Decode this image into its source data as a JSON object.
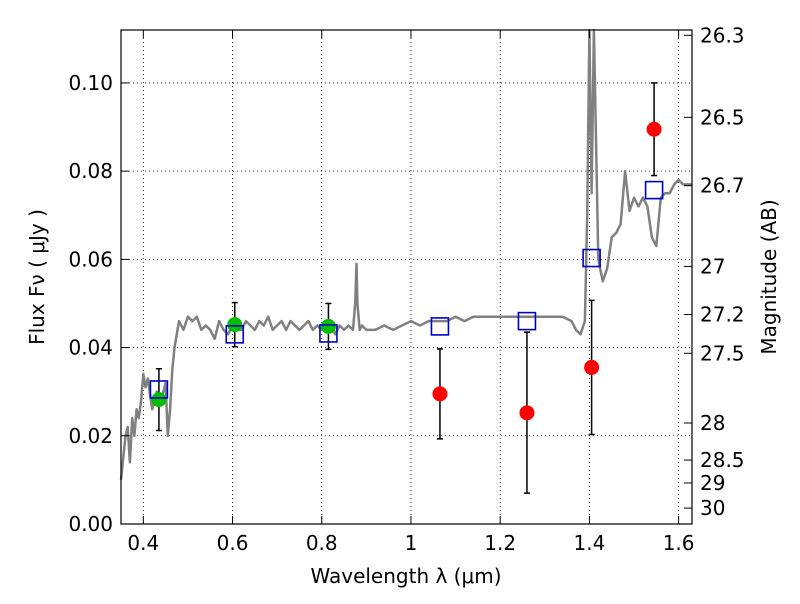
{
  "chart_data": {
    "type": "scatter",
    "xlabel": "Wavelength  λ (μm)",
    "ylabel": "Flux  Fν  ( μJy )",
    "y2label": "Magnitude (AB)",
    "xlim": [
      0.35,
      1.63
    ],
    "ylim": [
      0.0,
      0.112
    ],
    "grid": true,
    "xticks": [
      {
        "v": 0.4,
        "label": "0.4"
      },
      {
        "v": 0.6,
        "label": "0.6"
      },
      {
        "v": 0.8,
        "label": "0.8"
      },
      {
        "v": 1.0,
        "label": "1"
      },
      {
        "v": 1.2,
        "label": "1.2"
      },
      {
        "v": 1.4,
        "label": "1.4"
      },
      {
        "v": 1.6,
        "label": "1.6"
      }
    ],
    "yticks": [
      {
        "v": 0.0,
        "label": "0.00"
      },
      {
        "v": 0.02,
        "label": "0.02"
      },
      {
        "v": 0.04,
        "label": "0.04"
      },
      {
        "v": 0.06,
        "label": "0.06"
      },
      {
        "v": 0.08,
        "label": "0.08"
      },
      {
        "v": 0.1,
        "label": "0.10"
      }
    ],
    "mag_ticks": [
      {
        "v": 0.1108,
        "label": "26.3"
      },
      {
        "v": 0.0922,
        "label": "26.5"
      },
      {
        "v": 0.0767,
        "label": "26.7"
      },
      {
        "v": 0.0584,
        "label": "27"
      },
      {
        "v": 0.0475,
        "label": "27.2"
      },
      {
        "v": 0.0387,
        "label": "27.5"
      },
      {
        "v": 0.0229,
        "label": "28"
      },
      {
        "v": 0.0145,
        "label": "28.5"
      },
      {
        "v": 0.0093,
        "label": "29"
      },
      {
        "v": 0.0036,
        "label": "30"
      }
    ],
    "model_spectrum": {
      "color": "#808080",
      "x": [
        0.35,
        0.36,
        0.365,
        0.37,
        0.375,
        0.38,
        0.385,
        0.39,
        0.395,
        0.4,
        0.405,
        0.41,
        0.42,
        0.43,
        0.44,
        0.45,
        0.455,
        0.46,
        0.465,
        0.47,
        0.48,
        0.49,
        0.5,
        0.51,
        0.52,
        0.53,
        0.54,
        0.55,
        0.56,
        0.57,
        0.58,
        0.59,
        0.6,
        0.61,
        0.62,
        0.63,
        0.64,
        0.65,
        0.66,
        0.67,
        0.68,
        0.69,
        0.7,
        0.71,
        0.72,
        0.73,
        0.74,
        0.75,
        0.76,
        0.77,
        0.78,
        0.79,
        0.8,
        0.81,
        0.82,
        0.83,
        0.84,
        0.85,
        0.86,
        0.87,
        0.875,
        0.878,
        0.88,
        0.885,
        0.89,
        0.9,
        0.92,
        0.94,
        0.96,
        0.98,
        1.0,
        1.02,
        1.04,
        1.06,
        1.08,
        1.1,
        1.12,
        1.14,
        1.16,
        1.18,
        1.2,
        1.22,
        1.24,
        1.26,
        1.28,
        1.3,
        1.32,
        1.34,
        1.36,
        1.37,
        1.38,
        1.39,
        1.395,
        1.4,
        1.405,
        1.41,
        1.42,
        1.43,
        1.44,
        1.45,
        1.46,
        1.47,
        1.48,
        1.49,
        1.5,
        1.51,
        1.52,
        1.53,
        1.54,
        1.55,
        1.56,
        1.57,
        1.58,
        1.59,
        1.6,
        1.61,
        1.63
      ],
      "y": [
        0.01,
        0.02,
        0.022,
        0.014,
        0.024,
        0.02,
        0.026,
        0.024,
        0.028,
        0.034,
        0.031,
        0.033,
        0.026,
        0.03,
        0.028,
        0.032,
        0.02,
        0.026,
        0.035,
        0.04,
        0.046,
        0.044,
        0.047,
        0.046,
        0.047,
        0.044,
        0.045,
        0.044,
        0.042,
        0.046,
        0.044,
        0.043,
        0.045,
        0.044,
        0.044,
        0.046,
        0.045,
        0.044,
        0.046,
        0.045,
        0.047,
        0.044,
        0.045,
        0.046,
        0.044,
        0.046,
        0.045,
        0.044,
        0.045,
        0.046,
        0.044,
        0.045,
        0.044,
        0.045,
        0.046,
        0.043,
        0.045,
        0.044,
        0.045,
        0.044,
        0.05,
        0.059,
        0.05,
        0.044,
        0.045,
        0.044,
        0.044,
        0.045,
        0.044,
        0.045,
        0.046,
        0.045,
        0.046,
        0.046,
        0.046,
        0.047,
        0.046,
        0.047,
        0.047,
        0.047,
        0.047,
        0.047,
        0.047,
        0.047,
        0.047,
        0.047,
        0.047,
        0.047,
        0.046,
        0.044,
        0.043,
        0.046,
        0.07,
        0.112,
        0.075,
        0.112,
        0.06,
        0.055,
        0.058,
        0.065,
        0.066,
        0.068,
        0.08,
        0.071,
        0.074,
        0.072,
        0.074,
        0.072,
        0.065,
        0.063,
        0.074,
        0.075,
        0.075,
        0.077,
        0.078,
        0.077,
        0.077
      ]
    },
    "series": [
      {
        "marker": "circle",
        "color": "#00bf00",
        "points": [
          {
            "x": 0.435,
            "y": 0.0282,
            "lo": 0.0212,
            "hi": 0.0352
          },
          {
            "x": 0.605,
            "y": 0.0452,
            "lo": 0.0402,
            "hi": 0.0502
          },
          {
            "x": 0.815,
            "y": 0.0448,
            "lo": 0.0396,
            "hi": 0.05
          }
        ]
      },
      {
        "marker": "circle",
        "color": "#ff0000",
        "points": [
          {
            "x": 1.065,
            "y": 0.0295,
            "lo": 0.0193,
            "hi": 0.0397
          },
          {
            "x": 1.26,
            "y": 0.0252,
            "lo": 0.007,
            "hi": 0.0435
          },
          {
            "x": 1.405,
            "y": 0.0355,
            "lo": 0.0203,
            "hi": 0.0507
          },
          {
            "x": 1.545,
            "y": 0.0895,
            "lo": 0.079,
            "hi": 0.1
          }
        ]
      },
      {
        "marker": "square",
        "color": "#0000cc",
        "points": [
          {
            "x": 0.435,
            "y": 0.0305
          },
          {
            "x": 0.605,
            "y": 0.043
          },
          {
            "x": 0.815,
            "y": 0.0432
          },
          {
            "x": 1.065,
            "y": 0.0448
          },
          {
            "x": 1.26,
            "y": 0.046
          },
          {
            "x": 1.405,
            "y": 0.0603
          },
          {
            "x": 1.545,
            "y": 0.0757
          }
        ]
      }
    ]
  }
}
